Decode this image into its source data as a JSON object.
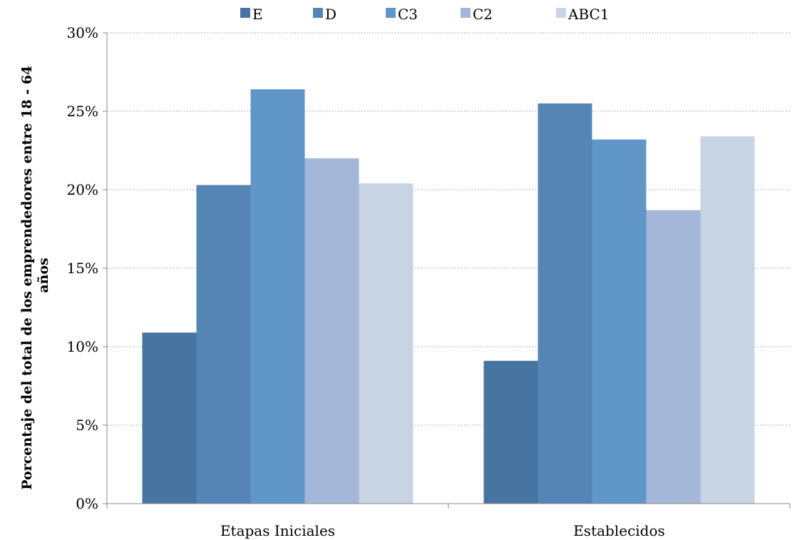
{
  "chart_data": {
    "type": "bar",
    "title": "",
    "xlabel": "",
    "ylabel_lines": [
      "Porcentaje del total de los emprendedores entre 18 - 64",
      "años"
    ],
    "categories": [
      "Etapas Iniciales",
      "Establecidos"
    ],
    "ylim": [
      0,
      30
    ],
    "ytick_values": [
      0,
      5,
      10,
      15,
      20,
      25,
      30
    ],
    "ytick_labels": [
      "0%",
      "5%",
      "10%",
      "15%",
      "20%",
      "25%",
      "30%"
    ],
    "grid": true,
    "legend_position": "top",
    "series": [
      {
        "name": "E",
        "color": "#4874a1",
        "values": [
          10.9,
          9.1
        ]
      },
      {
        "name": "D",
        "color": "#5585b5",
        "values": [
          20.3,
          25.5
        ]
      },
      {
        "name": "C3",
        "color": "#6096c8",
        "values": [
          26.4,
          23.2
        ]
      },
      {
        "name": "C2",
        "color": "#a4b7d8",
        "values": [
          22.0,
          18.7
        ]
      },
      {
        "name": "ABC1",
        "color": "#c8d3e4",
        "values": [
          20.4,
          23.4
        ]
      }
    ]
  }
}
